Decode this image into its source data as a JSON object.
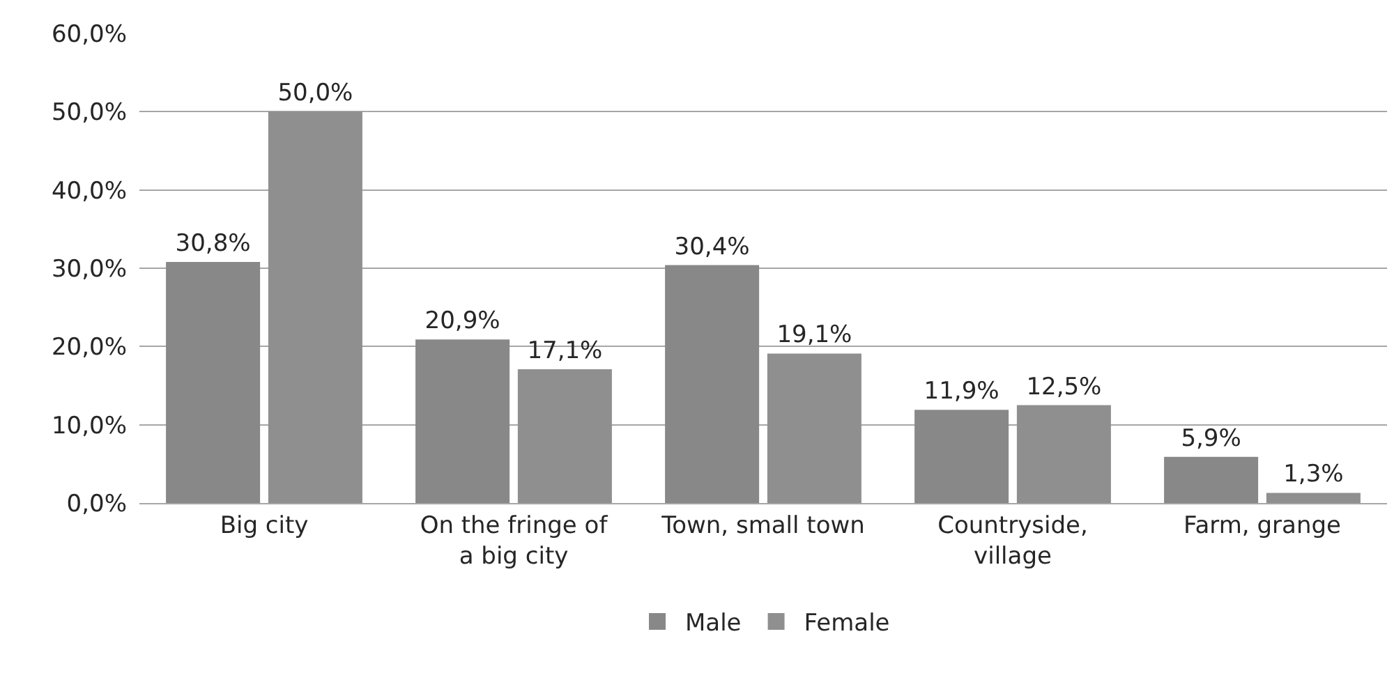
{
  "chart_data": {
    "type": "bar",
    "categories": [
      "Big city",
      "On the fringe of a big city",
      "Town, small town",
      "Countryside, village",
      "Farm, grange"
    ],
    "series": [
      {
        "name": "Male",
        "color": "#888888",
        "values": [
          30.8,
          20.9,
          30.4,
          11.9,
          5.9
        ],
        "value_labels": [
          "30,8%",
          "20,9%",
          "30,4%",
          "11,9%",
          "5,9%"
        ]
      },
      {
        "name": "Female",
        "color": "#8f8f8f",
        "values": [
          50.0,
          17.1,
          19.1,
          12.5,
          1.3
        ],
        "value_labels": [
          "50,0%",
          "17,1%",
          "19,1%",
          "12,5%",
          "1,3%"
        ]
      }
    ],
    "ylim": [
      0,
      60
    ],
    "yticks": [
      {
        "value": 0,
        "label": "0,0%"
      },
      {
        "value": 10,
        "label": "10,0%"
      },
      {
        "value": 20,
        "label": "20,0%"
      },
      {
        "value": 30,
        "label": "30,0%"
      },
      {
        "value": 40,
        "label": "40,0%"
      },
      {
        "value": 50,
        "label": "50,0%"
      },
      {
        "value": 60,
        "label": "60,0%"
      }
    ],
    "grid": "y",
    "legend": "bottom"
  }
}
